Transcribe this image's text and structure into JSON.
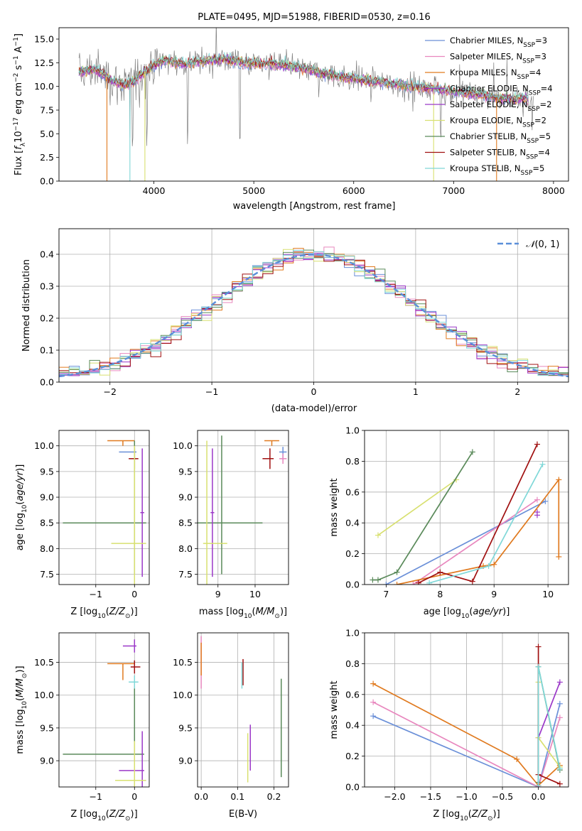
{
  "colors": {
    "chabrier_miles": "#6a8fd8",
    "salpeter_miles": "#e887be",
    "kroupa_miles": "#e07a1f",
    "chabrier_elodie": "#9b38c8",
    "salpeter_elodie": "#9b38c8",
    "kroupa_elodie": "#d8e070",
    "chabrier_stelib": "#5a8a5a",
    "salpeter_stelib": "#a01010",
    "kroupa_stelib": "#80d8d8",
    "data": "#808080",
    "normal": "#5b8fd9"
  },
  "chart_data": [
    {
      "id": "spectrum",
      "type": "line",
      "title": "PLATE=0495, MJD=51988, FIBERID=0530, z=0.16",
      "xlabel": "wavelength [Angstrom, rest frame]",
      "ylabel": "Flux [fλ10⁻¹⁷ erg cm⁻² s⁻¹ A⁻¹]",
      "xlim": [
        3050,
        8150
      ],
      "ylim": [
        0,
        16.2
      ],
      "xticks": [
        4000,
        5000,
        6000,
        7000,
        8000
      ],
      "yticks": [
        0.0,
        2.5,
        5.0,
        7.5,
        10.0,
        12.5,
        15.0
      ],
      "legend_position": "top-right",
      "legend": [
        "Chabrier MILES, N_SSP=3",
        "Salpeter MILES, N_SSP=3",
        "Kroupa MILES, N_SSP=4",
        "Chabrier ELODIE, N_SSP=4",
        "Salpeter ELODIE, N_SSP=2",
        "Kroupa ELODIE, N_SSP=2",
        "Chabrier STELIB, N_SSP=5",
        "Salpeter STELIB, N_SSP=4",
        "Kroupa STELIB, N_SSP=5"
      ],
      "model_continuum": {
        "x": [
          3250,
          3400,
          3500,
          3600,
          3700,
          3800,
          3900,
          4000,
          4100,
          4200,
          4300,
          4500,
          4700,
          4900,
          5100,
          5300,
          5500,
          5700,
          5900,
          6100,
          6300,
          6500,
          6700,
          6900,
          7100,
          7300,
          7500
        ],
        "y": [
          11.5,
          11.8,
          11.3,
          10.5,
          10.2,
          10.5,
          11.5,
          12.2,
          12.8,
          12.6,
          12.3,
          12.7,
          12.9,
          12.5,
          12.4,
          12.3,
          11.9,
          11.4,
          11.0,
          10.7,
          10.4,
          10.1,
          9.9,
          9.6,
          9.3,
          9.1,
          8.7
        ]
      },
      "data_spectrum": {
        "x_range": [
          3250,
          7800
        ],
        "noise_amplitude": 1.2,
        "deep_absorptions": [
          3760,
          3785,
          3930,
          4340,
          4860,
          6870
        ]
      },
      "model_cutoffs": {
        "x": [
          3530,
          3760,
          3910,
          6800,
          7430
        ],
        "series": [
          "Kroupa MILES",
          "Kroupa STELIB",
          "Kroupa ELODIE",
          "Kroupa ELODIE",
          "Kroupa MILES"
        ]
      }
    },
    {
      "id": "residuals",
      "type": "histogram",
      "xlabel": "(data-model)/error",
      "ylabel": "Normed distribution",
      "xlim": [
        -2.5,
        2.5
      ],
      "ylim": [
        0,
        0.48
      ],
      "xticks": [
        -2,
        -1,
        0,
        1,
        2
      ],
      "yticks": [
        0.0,
        0.1,
        0.2,
        0.3,
        0.4
      ],
      "legend_position": "top-right",
      "legend": "N(0,1)",
      "bin_width": 0.1,
      "bin_start": -2.5
    },
    {
      "id": "age-Z",
      "type": "errorbar",
      "xlabel": "Z [log10(Z/Z☉)]",
      "ylabel": "age  [log10(age/yr)]",
      "xlim": [
        -1.95,
        0.38
      ],
      "ylim": [
        7.3,
        10.3
      ],
      "xticks": [
        -1,
        0
      ],
      "yticks": [
        7.5,
        8.0,
        8.5,
        9.0,
        9.5,
        10.0
      ],
      "points": [
        {
          "series": "Kroupa MILES",
          "x": -0.3,
          "xerr": [
            0.4,
            0.3
          ],
          "y": 10.1,
          "yerr": [
            0.1,
            0
          ]
        },
        {
          "series": "Chabrier MILES",
          "x": 0.0,
          "xerr": [
            0.4,
            0.05
          ],
          "y": 9.88,
          "yerr": [
            0.15,
            0.1
          ]
        },
        {
          "series": "Salpeter STELIB",
          "x": 0.0,
          "xerr": [
            0.15,
            0.1
          ],
          "y": 9.75,
          "yerr": [
            0.2,
            0.2
          ]
        },
        {
          "series": "Chabrier STELIB",
          "x": 0.0,
          "xerr": [
            1.85,
            0.3
          ],
          "y": 8.5,
          "yerr": [
            1.0,
            1.6
          ]
        },
        {
          "series": "Chabrier ELODIE",
          "x": 0.2,
          "xerr": [
            0.05,
            0.05
          ],
          "y": 8.7,
          "yerr": [
            1.25,
            1.25
          ]
        },
        {
          "series": "Kroupa ELODIE",
          "x": 0.0,
          "xerr": [
            0.6,
            0.3
          ],
          "y": 8.1,
          "yerr": [
            1.0,
            1.9
          ]
        }
      ]
    },
    {
      "id": "age-mass",
      "type": "errorbar",
      "xlabel": "mass [log10(M/M☉)]",
      "ylabel": "",
      "xlim": [
        8.45,
        10.9
      ],
      "ylim": [
        7.3,
        10.3
      ],
      "xticks": [
        8,
        9,
        10
      ],
      "yticks": [
        7.5,
        8.0,
        8.5,
        9.0,
        9.5,
        10.0
      ],
      "points": [
        {
          "series": "Kroupa MILES",
          "x": 10.45,
          "xerr": [
            0.2,
            0.2
          ],
          "y": 10.1,
          "yerr": [
            0.1,
            0
          ]
        },
        {
          "series": "Chabrier MILES",
          "x": 10.75,
          "xerr": [
            0.1,
            0.1
          ],
          "y": 9.88,
          "yerr": [
            0.15,
            0.1
          ]
        },
        {
          "series": "Salpeter MILES",
          "x": 10.75,
          "xerr": [
            0.1,
            0.1
          ],
          "y": 9.75,
          "yerr": [
            0.1,
            0.1
          ]
        },
        {
          "series": "Salpeter STELIB",
          "x": 10.4,
          "xerr": [
            0.2,
            0.1
          ],
          "y": 9.75,
          "yerr": [
            0.2,
            0.2
          ]
        },
        {
          "series": "Chabrier STELIB",
          "x": 9.1,
          "xerr": [
            1.0,
            1.1
          ],
          "y": 8.5,
          "yerr": [
            1.0,
            1.7
          ]
        },
        {
          "series": "Chabrier ELODIE",
          "x": 8.85,
          "xerr": [
            0.05,
            0.05
          ],
          "y": 8.7,
          "yerr": [
            1.25,
            1.25
          ]
        },
        {
          "series": "Kroupa ELODIE",
          "x": 8.7,
          "xerr": [
            0.1,
            0.55
          ],
          "y": 8.1,
          "yerr": [
            1.0,
            2.0
          ]
        }
      ]
    },
    {
      "id": "weight-age",
      "type": "line",
      "xlabel": "age  [log10(age/yr)]",
      "ylabel": "mass weight",
      "xlim": [
        6.6,
        10.38
      ],
      "ylim": [
        0,
        1
      ],
      "xticks": [
        7,
        8,
        9,
        10
      ],
      "yticks": [
        0.0,
        0.2,
        0.4,
        0.6,
        0.8,
        1.0
      ],
      "series": [
        {
          "name": "Kroupa ELODIE",
          "x": [
            6.85,
            8.3
          ],
          "y": [
            0.32,
            0.68
          ]
        },
        {
          "name": "Chabrier STELIB",
          "x": [
            6.75,
            6.85,
            7.2,
            8.6
          ],
          "y": [
            0.03,
            0.03,
            0.08,
            0.86
          ]
        },
        {
          "name": "Chabrier MILES",
          "x": [
            7.0,
            9.95
          ],
          "y": [
            0.0,
            0.54
          ]
        },
        {
          "name": "Salpeter MILES",
          "x": [
            7.5,
            9.8
          ],
          "y": [
            0.0,
            0.55
          ]
        },
        {
          "name": "Kroupa MILES",
          "x": [
            7.2,
            8.8,
            9.0,
            10.2,
            10.2
          ],
          "y": [
            0.0,
            0.12,
            0.13,
            0.68,
            0.18
          ]
        },
        {
          "name": "Salpeter STELIB",
          "x": [
            7.6,
            8.0,
            8.6,
            9.8
          ],
          "y": [
            0.01,
            0.08,
            0.02,
            0.91
          ]
        },
        {
          "name": "Kroupa STELIB",
          "x": [
            7.8,
            8.9,
            9.9
          ],
          "y": [
            0.01,
            0.12,
            0.78
          ]
        },
        {
          "name": "Chabrier ELODIE",
          "x": [
            9.8
          ],
          "y": [
            0.47
          ]
        },
        {
          "name": "Salpeter ELODIE",
          "x": [
            9.8
          ],
          "y": [
            0.45
          ]
        }
      ]
    },
    {
      "id": "mass-Z",
      "type": "errorbar",
      "xlabel": "Z [log10(Z/Z☉)]",
      "ylabel": "mass [log10(M/M☉)]",
      "xlim": [
        -1.95,
        0.38
      ],
      "ylim": [
        8.6,
        10.95
      ],
      "xticks": [
        -1,
        0
      ],
      "yticks": [
        9.0,
        9.5,
        10.0,
        10.5
      ],
      "points": [
        {
          "series": "Kroupa MILES",
          "x": -0.3,
          "xerr": [
            0.4,
            0.3
          ],
          "y": 10.48,
          "yerr": [
            0.25,
            0
          ]
        },
        {
          "series": "Chabrier ELODIE",
          "x": 0.0,
          "xerr": [
            0.3,
            0.05
          ],
          "y": 10.75,
          "yerr": [
            0.1,
            0.1
          ]
        },
        {
          "series": "Salpeter STELIB",
          "x": 0.0,
          "xerr": [
            0.1,
            0.15
          ],
          "y": 10.43,
          "yerr": [
            0.1,
            0.1
          ]
        },
        {
          "series": "Kroupa STELIB",
          "x": 0.0,
          "xerr": [
            0.15,
            0.1
          ],
          "y": 10.2,
          "yerr": [
            0.1,
            0.1
          ]
        },
        {
          "series": "Chabrier STELIB",
          "x": 0.0,
          "xerr": [
            1.85,
            0.25
          ],
          "y": 9.1,
          "yerr": [
            0.0,
            1.0
          ]
        },
        {
          "series": "Chabrier ELODIE",
          "x": 0.2,
          "xerr": [
            0.6,
            0.05
          ],
          "y": 8.85,
          "yerr": [
            0.6,
            0.6
          ]
        },
        {
          "series": "Kroupa ELODIE",
          "x": 0.0,
          "xerr": [
            0.5,
            0.3
          ],
          "y": 8.7,
          "yerr": [
            0.1,
            0.6
          ]
        }
      ]
    },
    {
      "id": "mass-ebv",
      "type": "errorbar",
      "xlabel": "E(B-V)",
      "ylabel": "",
      "xlim": [
        -0.01,
        0.24
      ],
      "ylim": [
        8.6,
        10.95
      ],
      "xticks": [
        0.0,
        0.1,
        0.2
      ],
      "yticks": [
        9.0,
        9.5,
        10.0,
        10.5
      ],
      "points": [
        {
          "series": "Salpeter MILES",
          "x": 0.0,
          "yerr": [
            0.4,
            0.4
          ],
          "y": 10.5
        },
        {
          "series": "Kroupa MILES",
          "x": 0.0,
          "yerr": [
            0.2,
            0.3
          ],
          "y": 10.5
        },
        {
          "series": "Salpeter STELIB",
          "x": 0.115,
          "yerr": [
            0.2,
            0.2
          ],
          "y": 10.35
        },
        {
          "series": "Kroupa STELIB",
          "x": 0.112,
          "yerr": [
            0.2,
            0.2
          ],
          "y": 10.3
        },
        {
          "series": "Chabrier STELIB",
          "x": 0.22,
          "yerr": [
            1.5,
            0.0
          ],
          "y": 10.25
        },
        {
          "series": "Kroupa ELODIE",
          "x": 0.128,
          "yerr": [
            0.75,
            0.0
          ],
          "y": 9.42
        },
        {
          "series": "Chabrier ELODIE",
          "x": 0.135,
          "yerr": [
            0.7,
            0.0
          ],
          "y": 9.55
        }
      ]
    },
    {
      "id": "weight-Z",
      "type": "line",
      "xlabel": "Z [log10(Z/Z☉)]",
      "ylabel": "mass weight",
      "xlim": [
        -2.42,
        0.42
      ],
      "ylim": [
        0,
        1
      ],
      "xticks": [
        -2.0,
        -1.5,
        -1.0,
        -0.5,
        0.0
      ],
      "yticks": [
        0.0,
        0.2,
        0.4,
        0.6,
        0.8,
        1.0
      ],
      "series": [
        {
          "name": "Chabrier MILES",
          "x": [
            -2.3,
            0.0,
            0.3
          ],
          "y": [
            0.46,
            0.0,
            0.54
          ]
        },
        {
          "name": "Salpeter MILES",
          "x": [
            -2.3,
            0.0,
            0.3
          ],
          "y": [
            0.55,
            0.0,
            0.45
          ]
        },
        {
          "name": "Kroupa MILES",
          "x": [
            -2.3,
            -0.3,
            0.0,
            0.3
          ],
          "y": [
            0.67,
            0.18,
            0.01,
            0.14
          ]
        },
        {
          "name": "Chabrier ELODIE",
          "x": [
            0.0,
            0.0,
            0.3
          ],
          "y": [
            0.0,
            0.32,
            0.68
          ]
        },
        {
          "name": "Kroupa ELODIE",
          "x": [
            0.0,
            0.0,
            0.3
          ],
          "y": [
            0.68,
            0.32,
            0.13
          ]
        },
        {
          "name": "Chabrier STELIB",
          "x": [
            0.0,
            0.0,
            0.3
          ],
          "y": [
            0.03,
            0.78,
            0.11
          ]
        },
        {
          "name": "Salpeter STELIB",
          "x": [
            0.0,
            0.0,
            0.3
          ],
          "y": [
            0.91,
            0.08,
            0.02
          ]
        },
        {
          "name": "Kroupa STELIB",
          "x": [
            0.0,
            0.0,
            0.3
          ],
          "y": [
            0.01,
            0.78,
            0.12
          ]
        }
      ]
    }
  ]
}
